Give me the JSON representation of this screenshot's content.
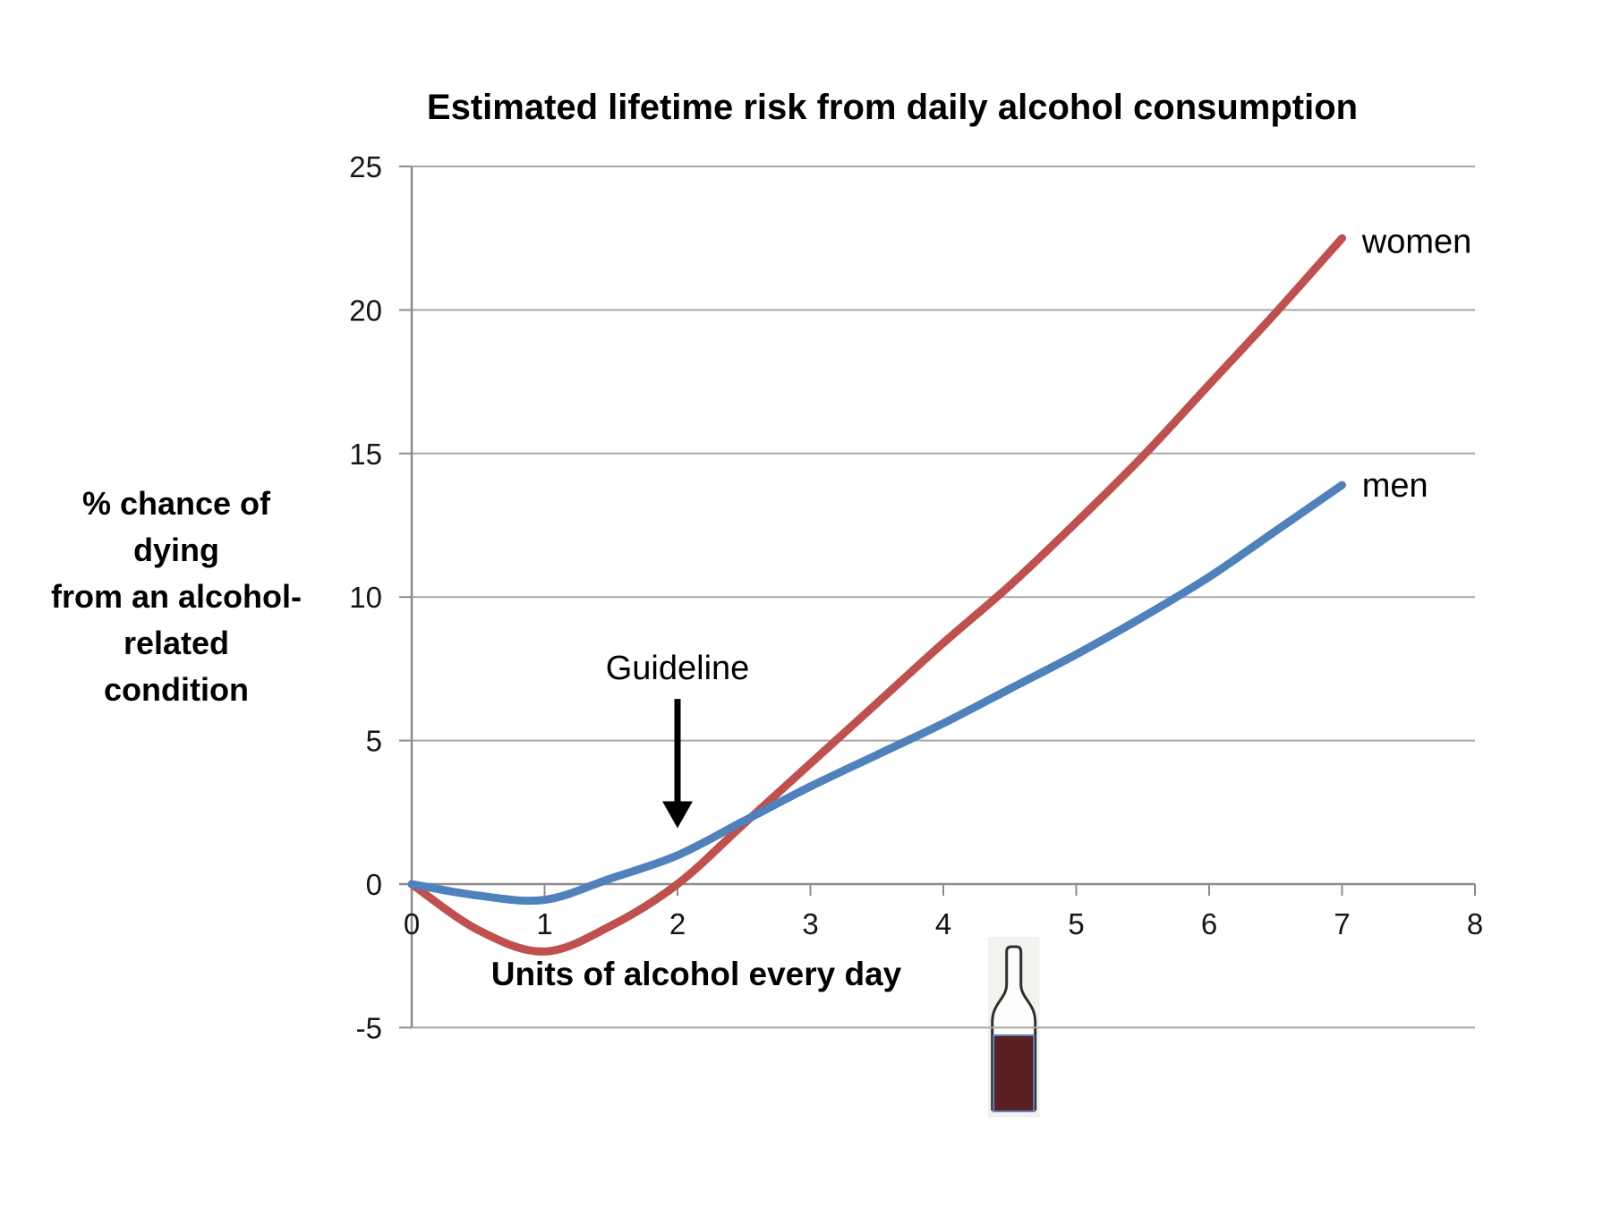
{
  "title": "Estimated lifetime risk from daily alcohol consumption",
  "y_axis_label_lines": [
    "% chance of",
    "dying",
    "from an alcohol-",
    "related",
    "condition"
  ],
  "x_axis_title": "Units of alcohol every day",
  "colors": {
    "gridline": "#a8a8a8",
    "axis": "#8c8c8c",
    "women": "#C0504D",
    "men": "#4F81BD",
    "annotation": "#000000",
    "bottle_wine_fill": "#591F22",
    "bottle_wine_border": "#5F83B6",
    "bottle_outline": "#2E2E2E",
    "bottle_backdrop": "#F3F2EF"
  },
  "chart_data": {
    "type": "line",
    "title": "Estimated lifetime risk from daily alcohol consumption",
    "xlabel": "Units of alcohol every day",
    "ylabel": "% chance of dying from an alcohol-related condition",
    "xlim": [
      0,
      8
    ],
    "ylim": [
      -5,
      25
    ],
    "x_ticks": [
      0,
      1,
      2,
      3,
      4,
      5,
      6,
      7,
      8
    ],
    "y_ticks": [
      -5,
      0,
      5,
      10,
      15,
      20,
      25
    ],
    "grid": true,
    "legend_position": "inline-right",
    "x": [
      0,
      0.5,
      1,
      1.5,
      2,
      2.5,
      3,
      3.5,
      4,
      4.5,
      5,
      5.5,
      6,
      6.5,
      7
    ],
    "series": [
      {
        "name": "women",
        "color": "#C0504D",
        "values": [
          0,
          -1.6,
          -2.35,
          -1.45,
          0,
          2.1,
          4.2,
          6.3,
          8.4,
          10.4,
          12.6,
          14.9,
          17.4,
          19.9,
          22.5
        ],
        "label_x": 7.15,
        "label_y": 22.4
      },
      {
        "name": "men",
        "color": "#4F81BD",
        "values": [
          0,
          -0.4,
          -0.55,
          0.2,
          1.0,
          2.2,
          3.4,
          4.5,
          5.6,
          6.8,
          8.0,
          9.3,
          10.7,
          12.3,
          13.9
        ],
        "label_x": 7.15,
        "label_y": 13.9
      }
    ],
    "annotation": {
      "text": "Guideline",
      "x": 2,
      "label_y": 7.55,
      "arrow_tail_y": 6.45,
      "arrow_head_y": 1.95
    },
    "bottle_marker_x": 4.53
  }
}
